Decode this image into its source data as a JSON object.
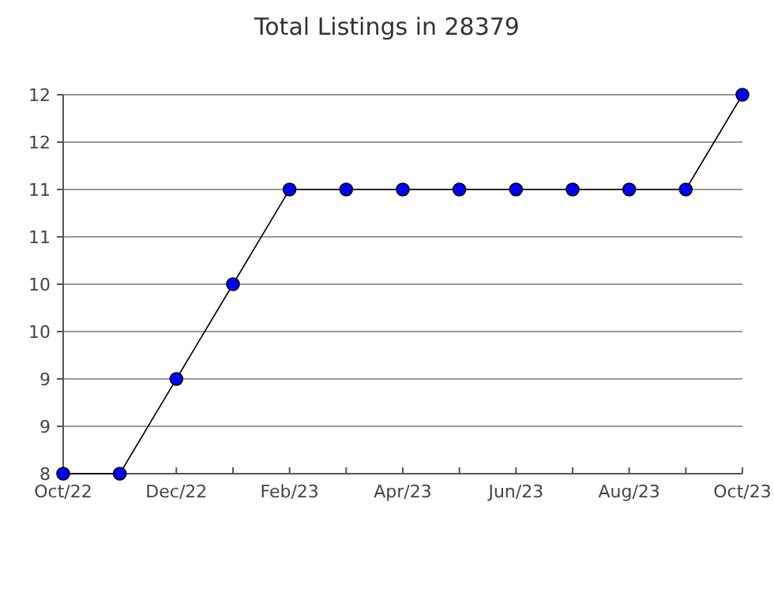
{
  "chart_data": {
    "type": "line",
    "title": "Total Listings in 28379",
    "categories": [
      "Oct/22",
      null,
      "Dec/22",
      null,
      "Feb/23",
      null,
      "Apr/23",
      null,
      "Jun/23",
      null,
      "Aug/23",
      null,
      "Oct/23"
    ],
    "series": [
      {
        "color": "#0000ff",
        "values": [
          8,
          8,
          9,
          10,
          11,
          11,
          11,
          11,
          11,
          11,
          11,
          11,
          12
        ]
      }
    ],
    "ylim": [
      8,
      12
    ],
    "yticks": [
      8,
      {
        "value": 8.5,
        "label": "9"
      },
      9,
      {
        "value": 9.5,
        "label": "10"
      },
      10,
      {
        "value": 10.5,
        "label": "11"
      },
      11,
      {
        "value": 11.5,
        "label": "12"
      },
      12
    ],
    "grid": "y",
    "marker": "circle",
    "line_style": "solid"
  }
}
